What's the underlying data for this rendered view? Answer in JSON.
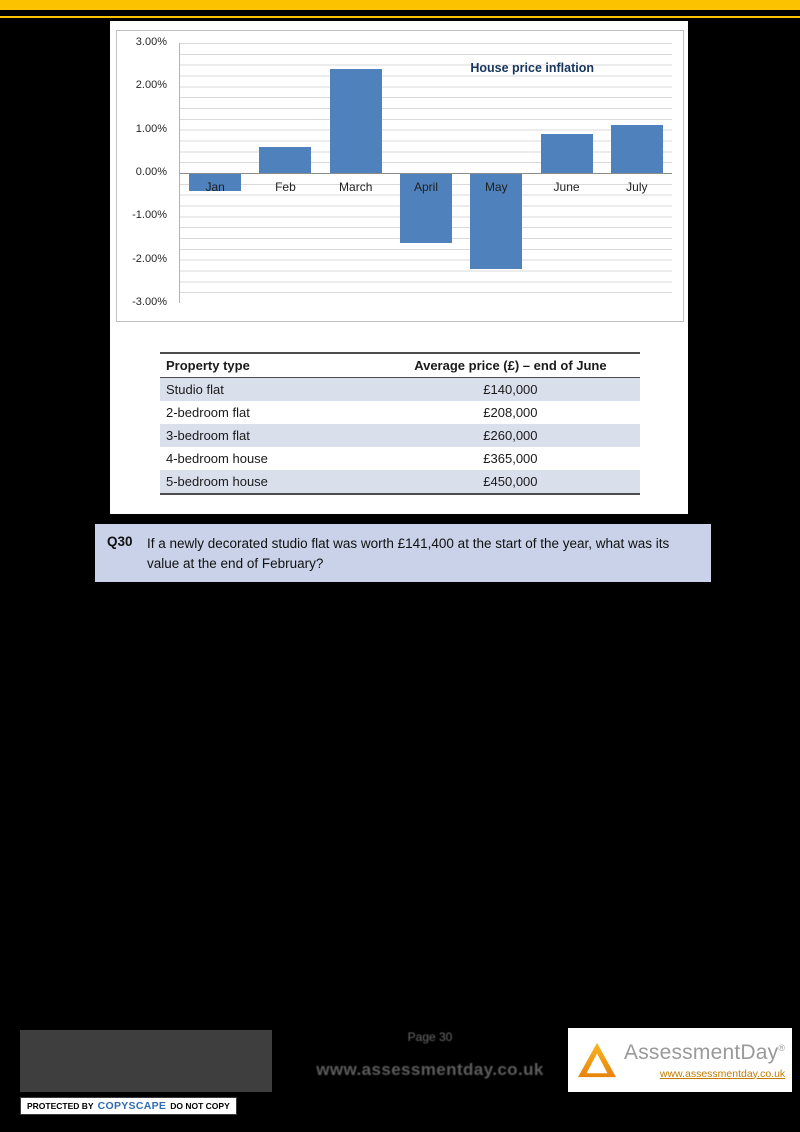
{
  "chart_data": {
    "type": "bar",
    "title": "House price inflation",
    "categories": [
      "Jan",
      "Feb",
      "March",
      "April",
      "May",
      "June",
      "July"
    ],
    "values": [
      -0.4,
      0.6,
      2.4,
      -1.6,
      -2.2,
      0.9,
      1.1
    ],
    "unit": "%",
    "ylim": [
      -3,
      3
    ],
    "ytick_labels": [
      "3.00%",
      "2.00%",
      "1.00%",
      "0.00%",
      "-1.00%",
      "-2.00%",
      "-3.00%"
    ],
    "grid": true,
    "legend": "none",
    "bar_color": "#4f81bd"
  },
  "table": {
    "headers": [
      "Property type",
      "Average price (£) – end of June"
    ],
    "rows": [
      [
        "Studio flat",
        "£140,000"
      ],
      [
        "2-bedroom flat",
        "£208,000"
      ],
      [
        "3-bedroom flat",
        "£260,000"
      ],
      [
        "4-bedroom house",
        "£365,000"
      ],
      [
        "5-bedroom house",
        "£450,000"
      ]
    ]
  },
  "question": {
    "number": "Q30",
    "text": "If a newly decorated studio flat was worth £141,400 at the start of the year, what was its value at the end of February?"
  },
  "footer": {
    "page_label": "Page 30",
    "center_url": "www.assessmentday.co.uk",
    "brand_name": "AssessmentDay",
    "registered_mark": "®",
    "brand_url": "www.assessmentday.co.uk",
    "copyscape_prefix": "PROTECTED BY",
    "copyscape_brand": "COPYSCAPE",
    "copyscape_suffix": "DO NOT COPY"
  },
  "colors": {
    "accent_yellow": "#fcc200",
    "bar_blue": "#4f81bd",
    "table_shade": "#dadfec",
    "question_bg": "#c9d2e8",
    "brand_orange": "#c17c00",
    "copyscape_blue": "#2f6cb3"
  }
}
